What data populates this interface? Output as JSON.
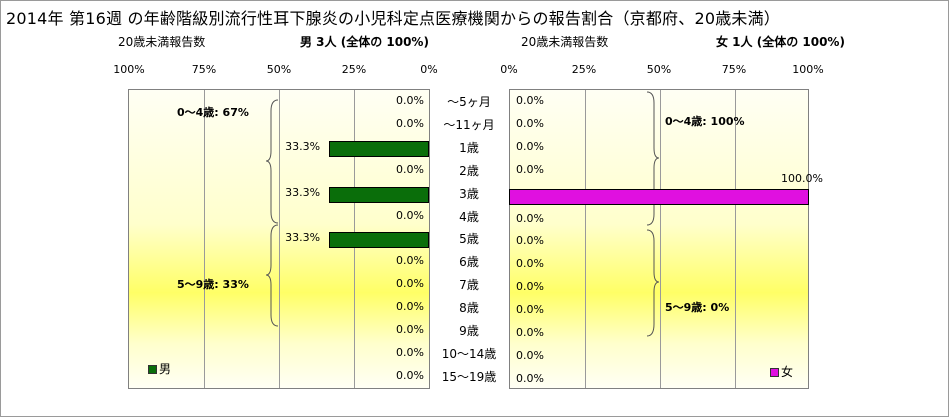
{
  "title": "2014年 第16週 の年齢階級別流行性耳下腺炎の小児科定点医療機関からの報告割合（京都府、20歳未満）",
  "left_header": {
    "count_label": "20歳未満報告数",
    "summary": "男 3人 (全体の 100%)"
  },
  "right_header": {
    "count_label": "20歳未満報告数",
    "summary": "女 1人 (全体の 100%)"
  },
  "colors": {
    "male": "#0a6e0a",
    "female": "#e010e0",
    "plot_bg_mid": "#ffff66"
  },
  "chart_data": [
    {
      "type": "bar",
      "orientation": "horizontal",
      "direction": "right-to-left",
      "categories": [
        "～5ヶ月",
        "～11ヶ月",
        "1歳",
        "2歳",
        "3歳",
        "4歳",
        "5歳",
        "6歳",
        "7歳",
        "8歳",
        "9歳",
        "10～14歳",
        "15～19歳"
      ],
      "series": [
        {
          "name": "男",
          "values": [
            0.0,
            0.0,
            33.3,
            0.0,
            33.3,
            0.0,
            33.3,
            0.0,
            0.0,
            0.0,
            0.0,
            0.0,
            0.0
          ]
        }
      ],
      "data_labels": [
        "0.0%",
        "0.0%",
        "33.3%",
        "0.0%",
        "33.3%",
        "0.0%",
        "33.3%",
        "0.0%",
        "0.0%",
        "0.0%",
        "0.0%",
        "0.0%",
        "0.0%"
      ],
      "xlim": [
        0,
        100
      ],
      "x_ticks": [
        "100%",
        "75%",
        "50%",
        "25%",
        "0%"
      ],
      "grid": true,
      "legend": "bottom-left",
      "group_annotations": [
        "0～4歳: 67%",
        "5～9歳: 33%"
      ]
    },
    {
      "type": "bar",
      "orientation": "horizontal",
      "direction": "left-to-right",
      "categories": [
        "～5ヶ月",
        "～11ヶ月",
        "1歳",
        "2歳",
        "3歳",
        "4歳",
        "5歳",
        "6歳",
        "7歳",
        "8歳",
        "9歳",
        "10～14歳",
        "15～19歳"
      ],
      "series": [
        {
          "name": "女",
          "values": [
            0.0,
            0.0,
            0.0,
            0.0,
            100.0,
            0.0,
            0.0,
            0.0,
            0.0,
            0.0,
            0.0,
            0.0,
            0.0
          ]
        }
      ],
      "data_labels": [
        "0.0%",
        "0.0%",
        "0.0%",
        "0.0%",
        "100.0%",
        "0.0%",
        "0.0%",
        "0.0%",
        "0.0%",
        "0.0%",
        "0.0%",
        "0.0%",
        "0.0%"
      ],
      "xlim": [
        0,
        100
      ],
      "x_ticks": [
        "0%",
        "25%",
        "50%",
        "75%",
        "100%"
      ],
      "grid": true,
      "legend": "bottom-right",
      "group_annotations": [
        "0～4歳: 100%",
        "5～9歳: 0%"
      ]
    }
  ]
}
